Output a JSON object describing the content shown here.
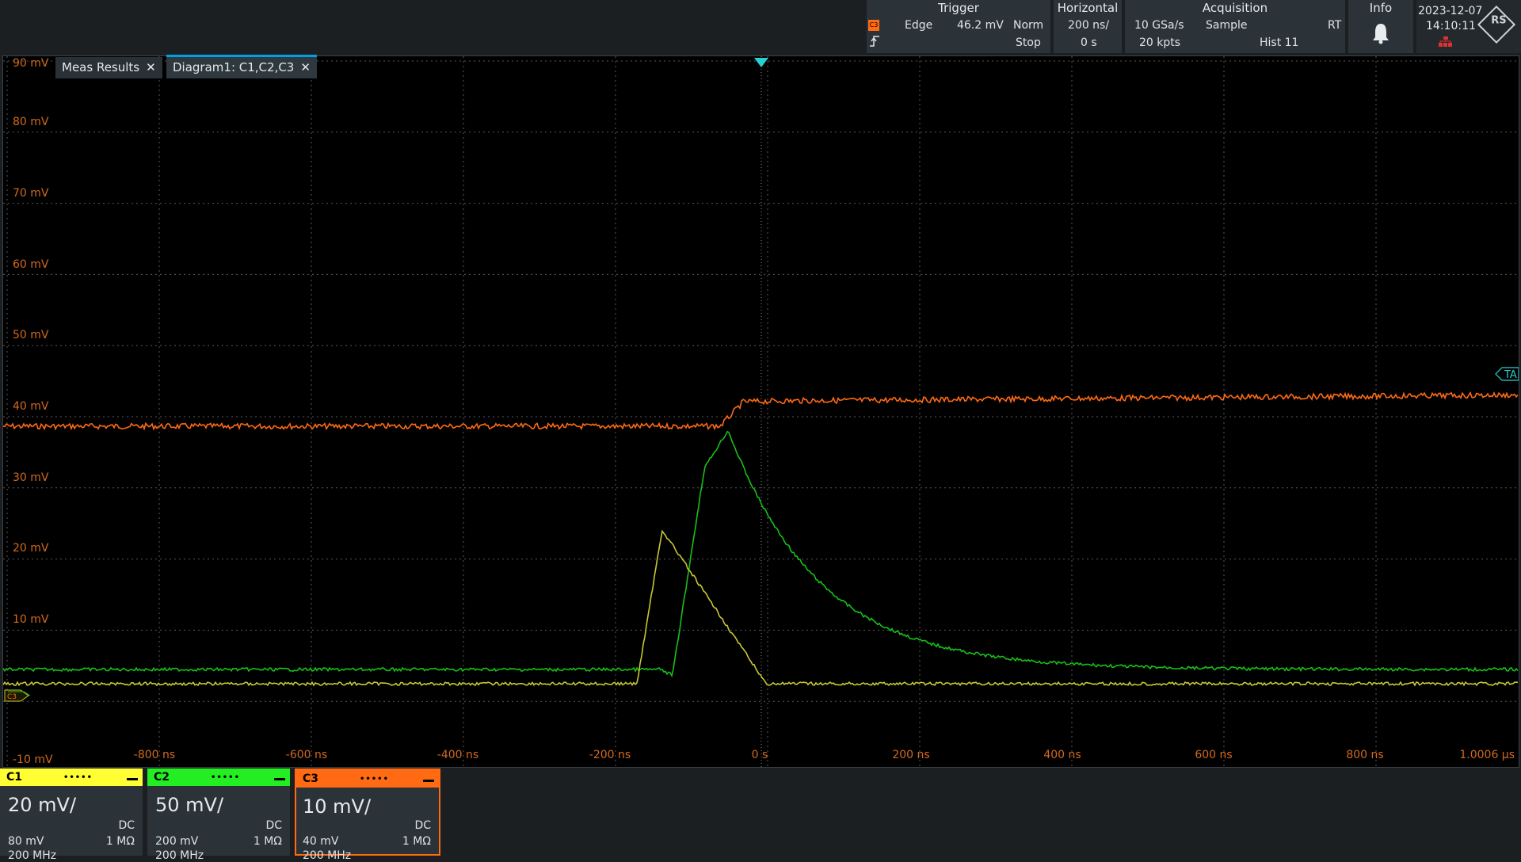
{
  "trigger": {
    "header": "Trigger",
    "source_badge": "C3",
    "type": "Edge",
    "level": "46.2 mV",
    "mode": "Norm",
    "state": "Stop"
  },
  "horizontal": {
    "header": "Horizontal",
    "scale": "200 ns/",
    "position": "0 s"
  },
  "acquisition": {
    "header": "Acquisition",
    "rate": "10 GSa/s",
    "mode": "Sample",
    "rt": "RT",
    "points": "20 kpts",
    "hist": "Hist 11"
  },
  "info": {
    "header": "Info",
    "icon": "bell-icon"
  },
  "datetime": {
    "date": "2023-12-07",
    "time": "14:10:11"
  },
  "logo": {
    "text": "RS"
  },
  "tabs": [
    {
      "label": "Meas Results",
      "close": "✕"
    },
    {
      "label": "Diagram1: C1,C2,C3",
      "close": "✕"
    }
  ],
  "y_labels": [
    "90 mV",
    "80 mV",
    "70 mV",
    "60 mV",
    "50 mV",
    "40 mV",
    "30 mV",
    "20 mV",
    "10 mV",
    "-10 mV"
  ],
  "x_labels": [
    "-800 ns",
    "-600 ns",
    "-400 ns",
    "-200 ns",
    "0 s",
    "200 ns",
    "400 ns",
    "600 ns",
    "800 ns",
    "1.0006 µs"
  ],
  "markers": {
    "ta": "TA",
    "c3_ground": "C3"
  },
  "channels": [
    {
      "id": "C1",
      "color": "#ffff33",
      "scale": "20 mV/",
      "coupling": "DC",
      "offset": "80 mV",
      "impedance": "1 MΩ",
      "bandwidth": "200 MHz"
    },
    {
      "id": "C2",
      "color": "#22ee22",
      "scale": "50 mV/",
      "coupling": "DC",
      "offset": "200 mV",
      "impedance": "1 MΩ",
      "bandwidth": "200 MHz"
    },
    {
      "id": "C3",
      "color": "#ff6a13",
      "scale": "10 mV/",
      "coupling": "DC",
      "offset": "40 mV",
      "impedance": "1 MΩ",
      "bandwidth": "200 MHz"
    }
  ],
  "colors": {
    "c1": "#c8c832",
    "c2": "#18c018",
    "c3": "#ff6a13",
    "grid": "#5a5a5a",
    "axis_label": "#d2691e",
    "marker": "#29d0d0"
  }
}
